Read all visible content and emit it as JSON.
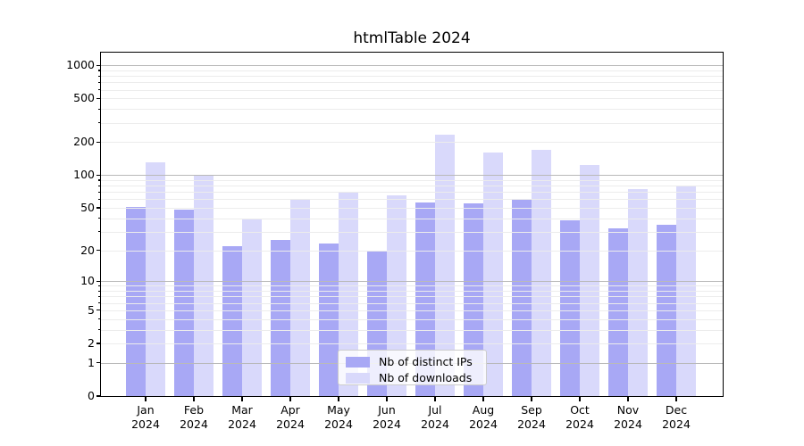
{
  "chart_data": {
    "type": "bar",
    "title": "htmlTable 2024",
    "categories": [
      "Jan",
      "Feb",
      "Mar",
      "Apr",
      "May",
      "Jun",
      "Jul",
      "Aug",
      "Sep",
      "Oct",
      "Nov",
      "Dec"
    ],
    "year": "2024",
    "series": [
      {
        "name": "Nb of distinct IPs",
        "color": "#a8a8f5",
        "values": [
          51,
          48,
          22,
          25,
          23,
          20,
          56,
          55,
          60,
          38,
          32,
          35
        ]
      },
      {
        "name": "Nb of downloads",
        "color": "#d9d9fb",
        "values": [
          132,
          100,
          40,
          60,
          71,
          65,
          234,
          160,
          170,
          124,
          75,
          80
        ]
      }
    ],
    "xlabel": "",
    "ylabel": "",
    "y_scale": "log(1+x)",
    "ylim": [
      0,
      1300
    ],
    "y_ticks": [
      0,
      1,
      2,
      5,
      10,
      20,
      50,
      100,
      200,
      500,
      1000
    ],
    "y_major_gridline_values": [
      1,
      10,
      100,
      1000
    ],
    "grid": true,
    "grid_on_top_of_bars": true,
    "legend_position": "lower center"
  },
  "colors": {
    "background": "#ffffff",
    "bar_distinct_ips": "#a8a8f5",
    "bar_downloads": "#d9d9fb",
    "gridline_major": "#b9b9b9",
    "gridline_minor": "#ececec",
    "spine": "#000000",
    "legend_border": "#cccccc",
    "text": "#000000"
  }
}
